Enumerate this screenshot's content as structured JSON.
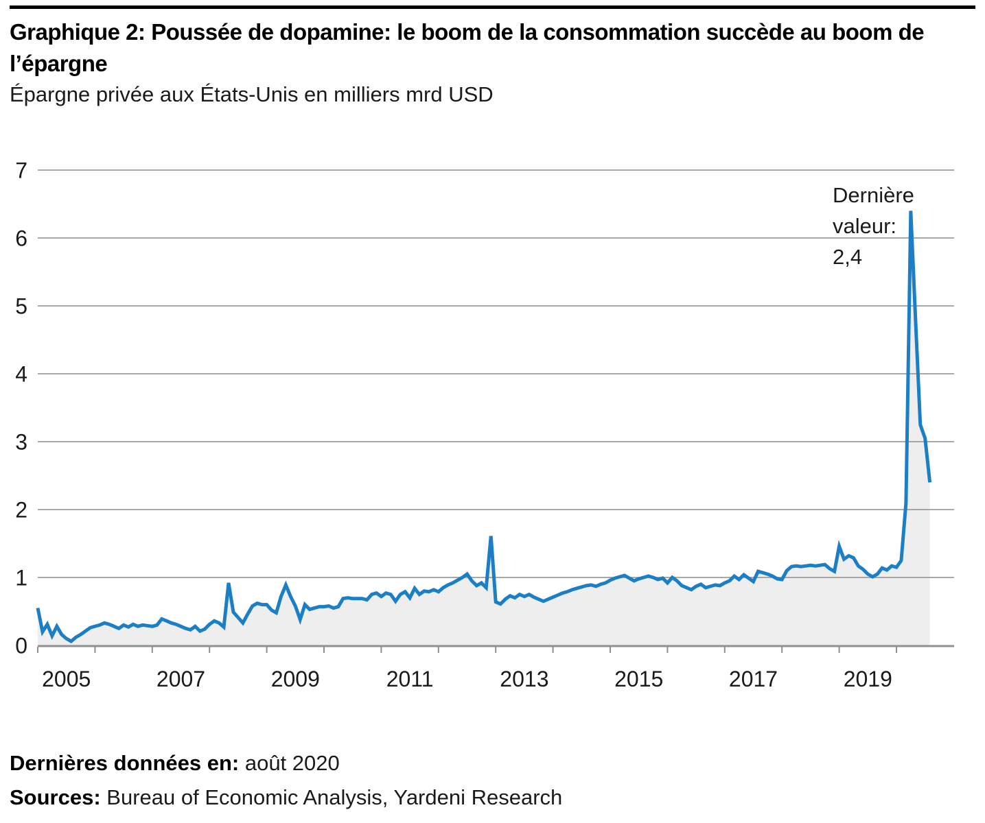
{
  "header": {
    "title": "Graphique 2: Poussée de dopamine: le boom de la consommation succède au boom de l’épargne",
    "subtitle": "Épargne privée aux États-Unis en milliers mrd USD"
  },
  "footer": {
    "last_data_label": "Dernières données en:",
    "last_data_value": " août 2020",
    "sources_label": "Sources:",
    "sources_value": " Bureau of Economic Analysis, Yardeni Research"
  },
  "colors": {
    "line": "#1c7ec5",
    "area_fill": "#eeeeee",
    "gridline": "#9b9b9b",
    "axis": "#8f8f8f",
    "text": "#1a1a1a",
    "title": "#000000",
    "top_rule": "#000000"
  },
  "chart_data": {
    "type": "line",
    "title": "Graphique 2: Poussée de dopamine: le boom de la consommation succède au boom de l’épargne",
    "subtitle": "Épargne privée aux États-Unis en milliers mrd USD",
    "unit": "milliers mrd USD",
    "frequency": "monthly",
    "start_month": "2005-01",
    "end_month": "2020-08",
    "grid": "horizontal-only",
    "ylim": [
      0,
      7.05
    ],
    "y_axis": {
      "ticks": [
        0,
        1,
        2,
        3,
        4,
        5,
        6,
        7
      ]
    },
    "x_axis": {
      "tick_years": [
        2005,
        2006,
        2007,
        2008,
        2009,
        2010,
        2011,
        2012,
        2013,
        2014,
        2015,
        2016,
        2017,
        2018,
        2019,
        2020
      ],
      "labels": [
        "2005",
        "2007",
        "2009",
        "2011",
        "2013",
        "2015",
        "2017",
        "2019"
      ]
    },
    "annotation": {
      "text_lines": "Dernière\nvaleur:\n2,4",
      "value": 2.4
    },
    "series": [
      {
        "name": "Épargne privée aux États-Unis",
        "style": "line-with-area-fill",
        "monthly_values": [
          0.55,
          0.2,
          0.31,
          0.14,
          0.28,
          0.16,
          0.1,
          0.06,
          0.12,
          0.16,
          0.21,
          0.26,
          0.28,
          0.3,
          0.33,
          0.31,
          0.28,
          0.25,
          0.3,
          0.27,
          0.31,
          0.28,
          0.3,
          0.29,
          0.28,
          0.3,
          0.39,
          0.36,
          0.33,
          0.31,
          0.28,
          0.25,
          0.23,
          0.28,
          0.21,
          0.24,
          0.31,
          0.36,
          0.33,
          0.27,
          0.92,
          0.49,
          0.41,
          0.33,
          0.46,
          0.58,
          0.62,
          0.6,
          0.6,
          0.52,
          0.48,
          0.72,
          0.89,
          0.72,
          0.58,
          0.38,
          0.6,
          0.53,
          0.55,
          0.57,
          0.57,
          0.58,
          0.55,
          0.57,
          0.69,
          0.7,
          0.69,
          0.69,
          0.69,
          0.67,
          0.75,
          0.77,
          0.72,
          0.77,
          0.75,
          0.65,
          0.75,
          0.79,
          0.7,
          0.84,
          0.75,
          0.8,
          0.79,
          0.82,
          0.79,
          0.85,
          0.89,
          0.92,
          0.96,
          1.0,
          1.05,
          0.95,
          0.88,
          0.92,
          0.85,
          1.61,
          0.64,
          0.61,
          0.68,
          0.73,
          0.7,
          0.75,
          0.72,
          0.75,
          0.71,
          0.68,
          0.65,
          0.68,
          0.71,
          0.74,
          0.77,
          0.79,
          0.82,
          0.84,
          0.86,
          0.88,
          0.89,
          0.87,
          0.9,
          0.92,
          0.96,
          0.99,
          1.01,
          1.03,
          0.99,
          0.95,
          0.98,
          1.0,
          1.02,
          1.0,
          0.97,
          0.99,
          0.92,
          1.0,
          0.95,
          0.88,
          0.85,
          0.82,
          0.87,
          0.9,
          0.85,
          0.87,
          0.89,
          0.88,
          0.92,
          0.95,
          1.02,
          0.97,
          1.04,
          0.99,
          0.94,
          1.09,
          1.07,
          1.05,
          1.02,
          0.98,
          0.97,
          1.1,
          1.16,
          1.17,
          1.16,
          1.17,
          1.18,
          1.17,
          1.18,
          1.19,
          1.13,
          1.09,
          1.46,
          1.27,
          1.32,
          1.29,
          1.17,
          1.12,
          1.05,
          1.01,
          1.05,
          1.14,
          1.11,
          1.17,
          1.15,
          1.25,
          2.1,
          6.4,
          4.8,
          3.25,
          3.05,
          2.4
        ]
      }
    ]
  }
}
